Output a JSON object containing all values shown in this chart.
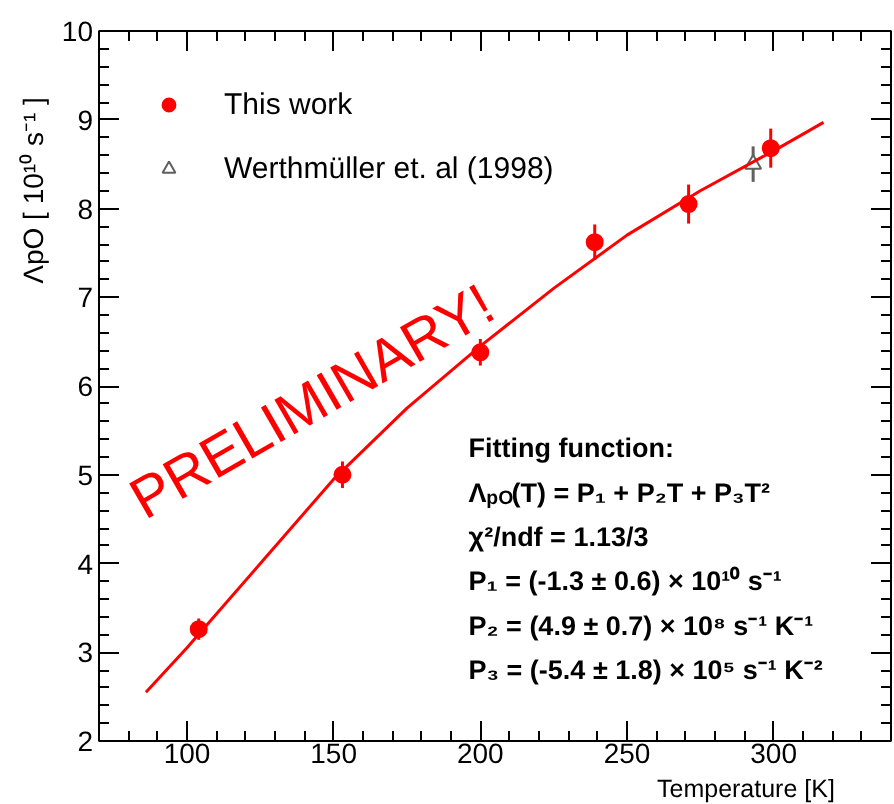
{
  "chart_data": {
    "type": "scatter",
    "xlabel": "Temperature [K]",
    "ylabel": "ΛpO [ 10¹⁰ s⁻¹ ]",
    "xlim": [
      70,
      340
    ],
    "ylim": [
      2,
      10
    ],
    "xticks": [
      100,
      150,
      200,
      250,
      300
    ],
    "yticks": [
      2,
      3,
      4,
      5,
      6,
      7,
      8,
      9,
      10
    ],
    "grid": false,
    "legend": "top left",
    "series": [
      {
        "name": "This work",
        "marker": "circle",
        "color": "#ff0000",
        "x": [
          104,
          153,
          200,
          239,
          271,
          299
        ],
        "values": [
          3.26,
          5.0,
          6.38,
          7.62,
          8.05,
          8.68
        ],
        "errors": [
          0.12,
          0.15,
          0.15,
          0.2,
          0.22,
          0.22
        ]
      },
      {
        "name": "Werthmüller et. al (1998)",
        "marker": "triangle",
        "color": "#606060",
        "x": [
          293
        ],
        "values": [
          8.5
        ],
        "errors": [
          0.2
        ]
      },
      {
        "type": "line",
        "marker": "none",
        "color": "#ff0000",
        "x": [
          86,
          100,
          125,
          150,
          175,
          200,
          225,
          250,
          275,
          300,
          317
        ],
        "values": [
          2.55,
          3.05,
          4.0,
          4.95,
          5.75,
          6.45,
          7.1,
          7.7,
          8.2,
          8.65,
          8.97
        ]
      }
    ],
    "annotations": [
      "PRELIMINARY!",
      "Fitting function:",
      "Λ$_{pO}$(T) = P₁ + P₂T + P₃T²",
      "χ²/ndf = 1.13/3",
      "P₁ = (-1.3 ± 0.6) × 10¹⁰ s⁻¹",
      "P₂ = (4.9 ± 0.7) × 10⁸ s⁻¹ K⁻¹",
      "P₃ = (-5.4 ± 1.8) × 10⁵ s⁻¹ K⁻²"
    ]
  }
}
